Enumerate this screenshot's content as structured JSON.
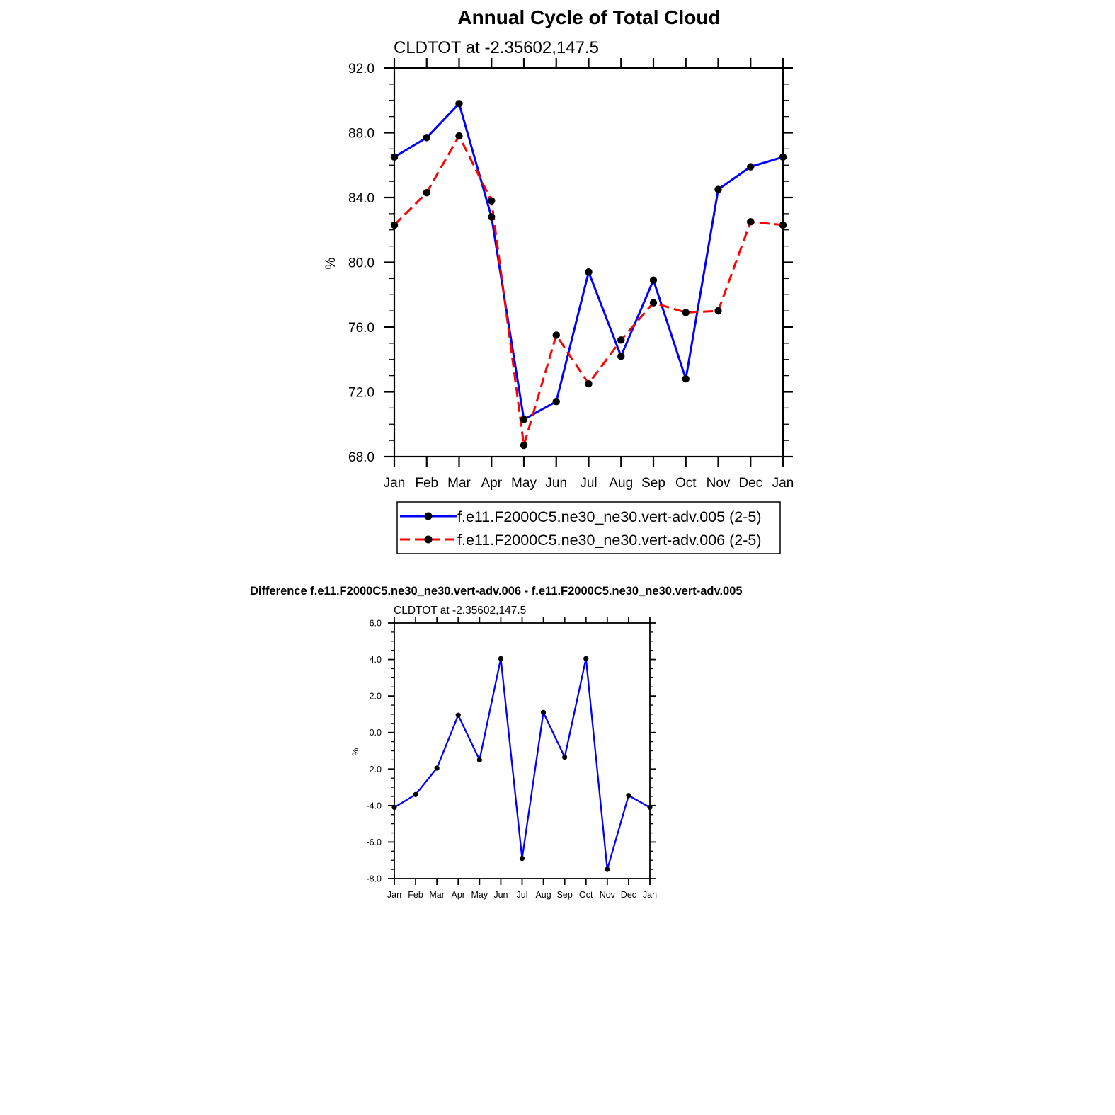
{
  "chart_data": [
    {
      "type": "line",
      "title": "Annual Cycle of Total Cloud",
      "subtitle": "CLDTOT at -2.35602,147.5",
      "ylabel": "%",
      "xlabel": "",
      "ylim": [
        68.0,
        92.0
      ],
      "yticks": [
        "68.0",
        "72.0",
        "76.0",
        "80.0",
        "84.0",
        "88.0",
        "92.0"
      ],
      "categories": [
        "Jan",
        "Feb",
        "Mar",
        "Apr",
        "May",
        "Jun",
        "Jul",
        "Aug",
        "Sep",
        "Oct",
        "Nov",
        "Dec",
        "Jan"
      ],
      "series": [
        {
          "name": "f.e11.F2000C5.ne30_ne30.vert-adv.005 (2-5)",
          "color": "#0000ff",
          "style": "solid",
          "values": [
            86.5,
            87.7,
            89.8,
            82.8,
            70.3,
            71.4,
            79.4,
            74.2,
            78.9,
            72.8,
            84.5,
            85.9,
            86.5
          ]
        },
        {
          "name": "f.e11.F2000C5.ne30_ne30.vert-adv.006 (2-5)",
          "color": "#ff0000",
          "style": "dashed",
          "values": [
            82.3,
            84.3,
            87.8,
            83.8,
            68.7,
            75.5,
            72.5,
            75.2,
            77.5,
            76.9,
            77.0,
            82.5,
            82.3
          ]
        }
      ],
      "legend": "bottom"
    },
    {
      "type": "line",
      "title": "Difference f.e11.F2000C5.ne30_ne30.vert-adv.006 - f.e11.F2000C5.ne30_ne30.vert-adv.005",
      "subtitle": "CLDTOT at -2.35602,147.5",
      "ylabel": "%",
      "xlabel": "",
      "ylim": [
        -8.0,
        6.0
      ],
      "yticks": [
        "-8.0",
        "-6.0",
        "-4.0",
        "-2.0",
        "0.0",
        "2.0",
        "4.0",
        "6.0"
      ],
      "categories": [
        "Jan",
        "Feb",
        "Mar",
        "Apr",
        "May",
        "Jun",
        "Jul",
        "Aug",
        "Sep",
        "Oct",
        "Nov",
        "Dec",
        "Jan"
      ],
      "series": [
        {
          "name": "difference",
          "color": "#0000ff",
          "style": "solid",
          "values": [
            -4.1,
            -3.4,
            -1.95,
            0.95,
            -1.5,
            4.05,
            -6.9,
            1.1,
            -1.35,
            4.05,
            -7.5,
            -3.45,
            -4.1
          ]
        }
      ]
    }
  ]
}
